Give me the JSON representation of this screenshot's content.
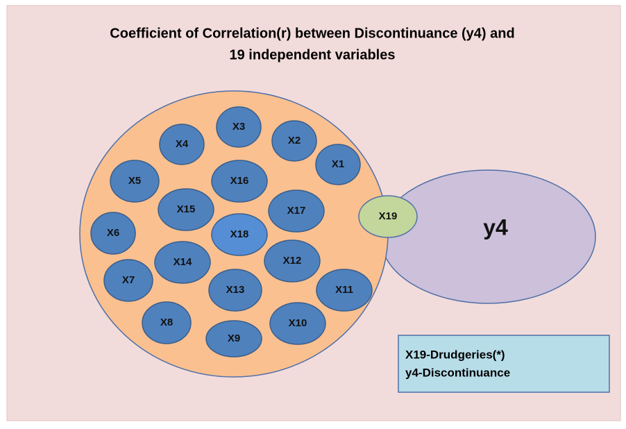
{
  "title": {
    "line1": "Coefficient of Correlation(r)  between Discontinuance (y4) and",
    "line2": "19 independent variables"
  },
  "nodes": [
    {
      "label": "X1"
    },
    {
      "label": "X2"
    },
    {
      "label": "X3"
    },
    {
      "label": "X4"
    },
    {
      "label": "X5"
    },
    {
      "label": "X6"
    },
    {
      "label": "X7"
    },
    {
      "label": "X8"
    },
    {
      "label": "X9"
    },
    {
      "label": "X10"
    },
    {
      "label": "X11"
    },
    {
      "label": "X12"
    },
    {
      "label": "X13"
    },
    {
      "label": "X14"
    },
    {
      "label": "X15"
    },
    {
      "label": "X16"
    },
    {
      "label": "X17"
    },
    {
      "label": "X18"
    },
    {
      "label": "X19"
    },
    {
      "label": "y4"
    }
  ],
  "legend": {
    "line1": "X19-Drudgeries(*)",
    "line2": "y4-Discontinuance"
  }
}
